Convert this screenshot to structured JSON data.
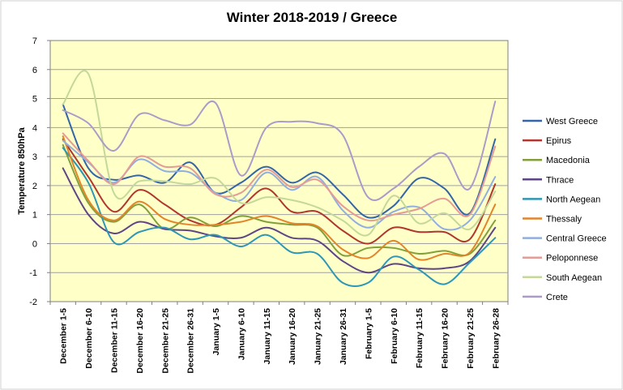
{
  "chart_data": {
    "type": "line",
    "title": "Winter 2018-2019 / Greece",
    "xlabel": "",
    "ylabel": "Temperature 850hPa",
    "ylim": [
      -2,
      7
    ],
    "yticks": [
      -2,
      -1,
      0,
      1,
      2,
      3,
      4,
      5,
      6,
      7
    ],
    "grid": true,
    "legend_position": "right",
    "smooth": true,
    "categories": [
      "December 1-5",
      "December 6-10",
      "December 11-15",
      "December 16-20",
      "December 21-25",
      "December 26-31",
      "January 1-5",
      "January 6-10",
      "January 11-15",
      "January 16-20",
      "January 21-25",
      "January 26-31",
      "February 1-5",
      "February 6-10",
      "February 11-15",
      "February 16-20",
      "February 21-25",
      "February 26-28"
    ],
    "series": [
      {
        "name": "West Greece",
        "color": "#3366a8",
        "values": [
          4.8,
          2.6,
          2.2,
          2.35,
          2.1,
          2.8,
          1.75,
          2.1,
          2.65,
          2.1,
          2.45,
          1.7,
          0.9,
          1.3,
          2.25,
          1.9,
          1.05,
          3.6
        ]
      },
      {
        "name": "Epirus",
        "color": "#b0372f",
        "values": [
          3.6,
          2.3,
          1.1,
          1.85,
          1.35,
          0.8,
          0.65,
          1.25,
          1.9,
          1.1,
          1.1,
          0.45,
          0.0,
          0.55,
          0.4,
          0.4,
          0.15,
          2.05
        ]
      },
      {
        "name": "Macedonia",
        "color": "#82a03a",
        "values": [
          3.4,
          1.4,
          0.75,
          1.35,
          0.5,
          0.9,
          0.6,
          0.95,
          0.75,
          0.65,
          0.55,
          -0.4,
          -0.15,
          -0.15,
          -0.35,
          -0.25,
          -0.35,
          0.8
        ]
      },
      {
        "name": "Thrace",
        "color": "#5e4586",
        "values": [
          2.6,
          1.0,
          0.35,
          0.75,
          0.5,
          0.45,
          0.25,
          0.2,
          0.55,
          0.2,
          0.1,
          -0.6,
          -1.0,
          -0.7,
          -0.85,
          -0.85,
          -0.6,
          0.55
        ]
      },
      {
        "name": "North Aegean",
        "color": "#2e97b5",
        "values": [
          3.3,
          2.1,
          0.05,
          0.4,
          0.55,
          0.15,
          0.3,
          -0.1,
          0.3,
          -0.3,
          -0.35,
          -1.35,
          -1.35,
          -0.45,
          -0.9,
          -1.4,
          -0.65,
          0.2
        ]
      },
      {
        "name": "Thessaly",
        "color": "#e3842b",
        "values": [
          3.7,
          1.5,
          0.8,
          1.45,
          0.85,
          0.65,
          0.65,
          0.75,
          0.95,
          0.7,
          0.6,
          -0.2,
          -0.5,
          0.1,
          -0.55,
          -0.35,
          -0.3,
          1.35
        ]
      },
      {
        "name": "Central Greece",
        "color": "#90aee0",
        "values": [
          3.55,
          2.8,
          2.1,
          2.9,
          2.5,
          2.45,
          1.75,
          1.5,
          2.45,
          1.85,
          2.3,
          1.15,
          0.55,
          1.1,
          1.25,
          0.5,
          0.8,
          2.3
        ]
      },
      {
        "name": "Peloponnese",
        "color": "#e59b96",
        "values": [
          3.8,
          2.85,
          2.05,
          3.0,
          2.65,
          2.6,
          1.7,
          1.75,
          2.55,
          1.95,
          2.2,
          1.3,
          0.8,
          1.0,
          1.2,
          1.55,
          1.0,
          3.35
        ]
      },
      {
        "name": "South Aegean",
        "color": "#c4d89a",
        "values": [
          4.8,
          5.85,
          1.75,
          2.15,
          2.15,
          2.05,
          2.25,
          1.4,
          1.6,
          1.5,
          1.25,
          0.8,
          0.3,
          1.65,
          0.7,
          1.05,
          0.5,
          1.8
        ]
      },
      {
        "name": "Crete",
        "color": "#ab9bc9",
        "values": [
          4.6,
          4.15,
          3.2,
          4.45,
          4.25,
          4.1,
          4.85,
          2.35,
          4.0,
          4.2,
          4.15,
          3.75,
          1.6,
          1.9,
          2.65,
          3.1,
          1.9,
          4.9
        ]
      }
    ]
  },
  "colors": {
    "plot_background": "#ffffc8",
    "grid": "#a0a0a0"
  }
}
